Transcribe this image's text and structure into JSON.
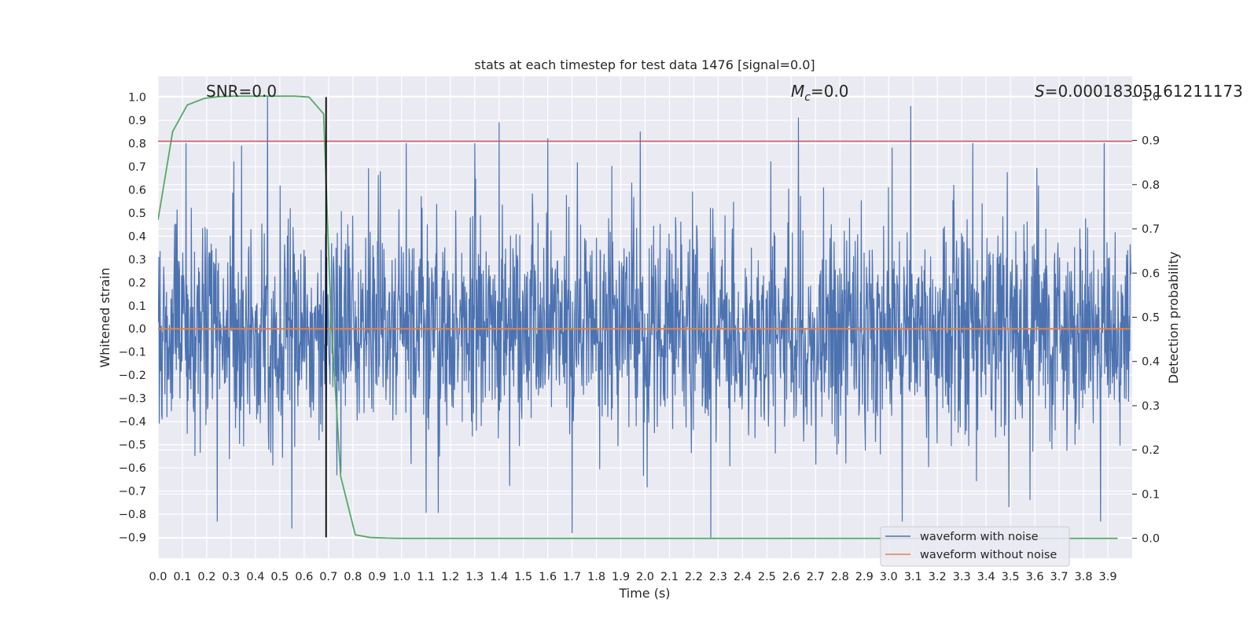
{
  "chart_data": {
    "type": "line",
    "title": "stats at each timestep for test data 1476 [signal=0.0]",
    "xlabel": "Time (s)",
    "ylabel_left": "Whitened strain",
    "ylabel_right": "Detection probability",
    "xlim": [
      0.0,
      4.0
    ],
    "ylim_left": [
      -0.99,
      1.09
    ],
    "ylim_right": [
      -0.045,
      1.045
    ],
    "x_ticks": [
      "0.0",
      "0.1",
      "0.2",
      "0.3",
      "0.4",
      "0.5",
      "0.6",
      "0.7",
      "0.8",
      "0.9",
      "1.0",
      "1.1",
      "1.2",
      "1.3",
      "1.4",
      "1.5",
      "1.6",
      "1.7",
      "1.8",
      "1.9",
      "2.0",
      "2.1",
      "2.2",
      "2.3",
      "2.4",
      "2.5",
      "2.6",
      "2.7",
      "2.8",
      "2.9",
      "3.0",
      "3.1",
      "3.2",
      "3.3",
      "3.4",
      "3.5",
      "3.6",
      "3.7",
      "3.8",
      "3.9"
    ],
    "y_ticks_left": [
      "1.0",
      "0.9",
      "0.8",
      "0.7",
      "0.6",
      "0.5",
      "0.4",
      "0.3",
      "0.2",
      "0.1",
      "0.0",
      "−0.1",
      "−0.2",
      "−0.3",
      "−0.4",
      "−0.5",
      "−0.6",
      "−0.7",
      "−0.8",
      "−0.9"
    ],
    "y_ticks_right": [
      "1.0",
      "0.9",
      "0.8",
      "0.7",
      "0.6",
      "0.5",
      "0.4",
      "0.3",
      "0.2",
      "0.1",
      "0.0"
    ],
    "grid": true,
    "annotations": {
      "snr": "SNR=0.0",
      "mc_symbol": "M",
      "mc_sub": "c",
      "mc_value": "=0.0",
      "s_symbol": "S",
      "s_value": "=0.00018305161211173"
    },
    "series": [
      {
        "name": "waveform with noise",
        "color": "#4c72b0",
        "axis": "left",
        "description": "dense noisy whitened strain spanning roughly -0.9 to 1.0",
        "peaks": [
          {
            "x": 0.45,
            "y": 1.0
          },
          {
            "x": 1.4,
            "y": 0.89
          },
          {
            "x": 1.6,
            "y": 0.82
          },
          {
            "x": 1.98,
            "y": 0.85
          },
          {
            "x": 2.63,
            "y": 0.91
          },
          {
            "x": 3.09,
            "y": 0.96
          },
          {
            "x": 2.27,
            "y": -0.9
          },
          {
            "x": 1.7,
            "y": -0.88
          },
          {
            "x": 0.55,
            "y": -0.86
          },
          {
            "x": 3.87,
            "y": -0.83
          }
        ]
      },
      {
        "name": "waveform without noise",
        "color": "#dd8452",
        "axis": "left",
        "x": [
          0.0,
          3.99
        ],
        "y": [
          0.0,
          0.0
        ]
      },
      {
        "color": "#55a868",
        "axis": "right",
        "x": [
          0.0,
          0.06,
          0.12,
          0.19,
          0.25,
          0.31,
          0.37,
          0.44,
          0.5,
          0.56,
          0.62,
          0.68,
          0.71,
          0.75,
          0.81,
          0.87,
          0.94,
          1.0,
          1.25,
          1.5,
          2.0,
          2.5,
          3.0,
          3.5,
          3.94
        ],
        "y": [
          0.72,
          0.92,
          0.98,
          0.995,
          0.999,
          1.0,
          1.0,
          1.0,
          1.0,
          1.0,
          0.998,
          0.96,
          0.5,
          0.14,
          0.008,
          0.002,
          0.0005,
          0.0,
          0.0,
          0.0,
          0.0,
          0.0,
          0.0,
          0.0,
          0.0
        ]
      },
      {
        "color": "#c44e52",
        "axis": "left",
        "x": [
          0.0,
          4.0
        ],
        "y": [
          0.81,
          0.81
        ]
      },
      {
        "color": "#000000",
        "axis": "left",
        "x": [
          0.69,
          0.69
        ],
        "y": [
          -0.9,
          1.0
        ]
      }
    ],
    "legend_location": "lower right"
  }
}
